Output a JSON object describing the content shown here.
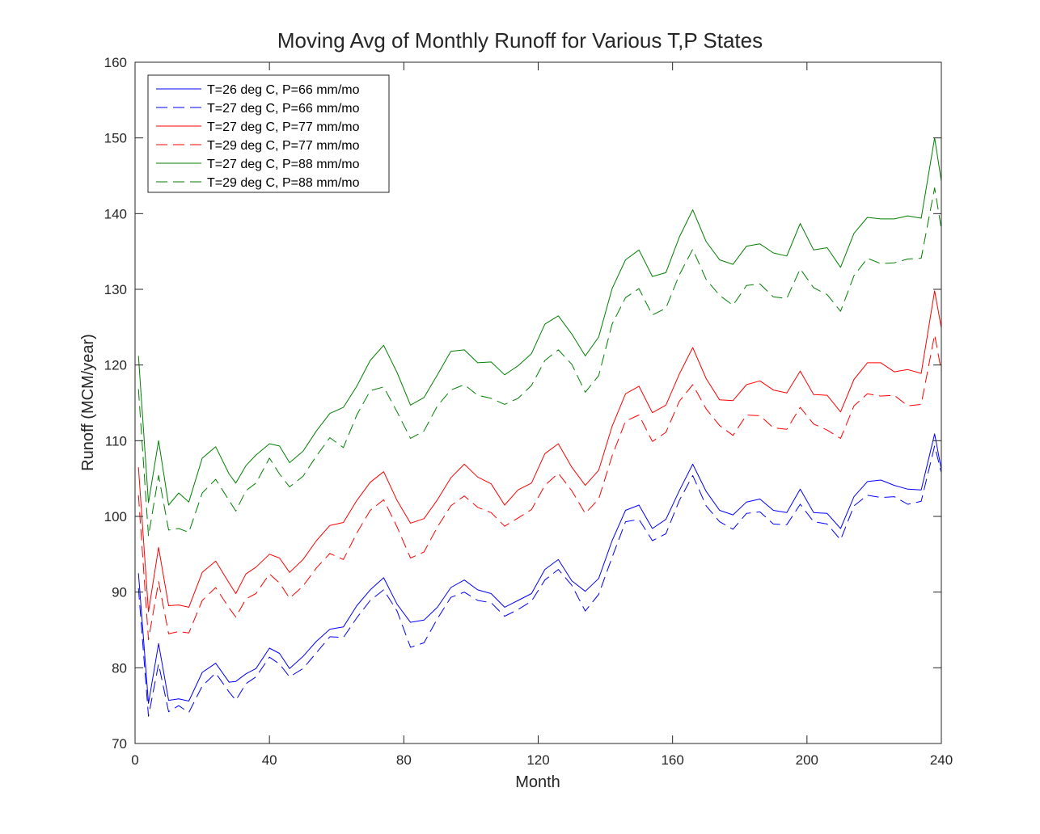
{
  "chart_data": {
    "type": "line",
    "title": "Moving Avg of Monthly Runoff for Various T,P States",
    "xlabel": "Month",
    "ylabel": "Runoff (MCM/year)",
    "xlim": [
      0,
      240
    ],
    "ylim": [
      70,
      160
    ],
    "xticks": [
      0,
      40,
      80,
      120,
      160,
      200,
      240
    ],
    "yticks": [
      70,
      80,
      90,
      100,
      110,
      120,
      130,
      140,
      150,
      160
    ],
    "grid": false,
    "legend_position": "top-left",
    "x": [
      1,
      4,
      7,
      10,
      13,
      16,
      20,
      24,
      28,
      30,
      33,
      36,
      40,
      43,
      46,
      50,
      54,
      58,
      62,
      66,
      70,
      74,
      78,
      82,
      86,
      90,
      94,
      98,
      102,
      106,
      110,
      114,
      118,
      122,
      126,
      130,
      134,
      138,
      142,
      146,
      150,
      154,
      158,
      162,
      166,
      170,
      174,
      178,
      182,
      186,
      190,
      194,
      198,
      202,
      206,
      210,
      214,
      218,
      222,
      226,
      230,
      234,
      238,
      240
    ],
    "series": [
      {
        "name": "T=26 deg C, P=66 mm/mo",
        "color": "#0000ff",
        "style": "solid",
        "values": [
          92.5,
          75.3,
          83.2,
          75.7,
          75.9,
          75.6,
          79.4,
          80.6,
          78.1,
          78.2,
          79.2,
          79.9,
          82.6,
          81.9,
          79.9,
          81.5,
          83.5,
          85.1,
          85.4,
          88.2,
          90.3,
          91.9,
          88.4,
          86.0,
          86.3,
          88.0,
          90.6,
          91.6,
          90.3,
          89.8,
          88.0,
          88.9,
          89.8,
          93.0,
          94.3,
          91.5,
          90.1,
          91.8,
          96.8,
          100.8,
          101.5,
          98.4,
          99.6,
          103.4,
          106.9,
          103.3,
          100.8,
          100.2,
          101.9,
          102.3,
          100.8,
          100.5,
          103.6,
          100.5,
          100.4,
          98.4,
          102.6,
          104.6,
          104.8,
          104.1,
          103.6,
          103.5,
          110.9,
          106.2
        ]
      },
      {
        "name": "T=27 deg C, P=66 mm/mo",
        "color": "#0000ff",
        "style": "dashed",
        "values": [
          90.5,
          73.6,
          80.5,
          74.2,
          75.0,
          74.1,
          77.6,
          79.3,
          76.8,
          75.7,
          77.9,
          78.8,
          81.4,
          80.5,
          78.8,
          79.9,
          82.0,
          84.1,
          84.0,
          86.6,
          88.9,
          90.3,
          87.5,
          82.7,
          83.3,
          86.5,
          89.3,
          90.0,
          88.9,
          88.6,
          86.8,
          87.7,
          88.8,
          91.6,
          93.0,
          90.9,
          87.5,
          89.7,
          94.6,
          99.3,
          99.6,
          96.8,
          97.7,
          102.1,
          105.4,
          101.4,
          99.3,
          98.3,
          100.4,
          100.6,
          99.0,
          98.9,
          101.6,
          99.3,
          99.0,
          96.9,
          101.4,
          102.8,
          102.5,
          102.6,
          101.6,
          102.0,
          109.3,
          105.8
        ]
      },
      {
        "name": "T=27 deg C, P=77 mm/mo",
        "color": "#ff0000",
        "style": "solid",
        "values": [
          106.5,
          87.4,
          95.9,
          88.2,
          88.3,
          88.0,
          92.6,
          94.1,
          91.2,
          89.8,
          92.4,
          93.3,
          95.0,
          94.5,
          92.6,
          94.3,
          96.8,
          98.8,
          99.2,
          102.1,
          104.5,
          105.9,
          102.1,
          99.1,
          99.7,
          102.2,
          105.1,
          106.9,
          105.2,
          104.3,
          101.5,
          103.5,
          104.4,
          108.3,
          109.6,
          106.5,
          104.1,
          106.1,
          111.9,
          116.2,
          117.2,
          113.7,
          114.7,
          118.8,
          122.3,
          118.2,
          115.4,
          115.3,
          117.4,
          117.9,
          116.7,
          116.3,
          119.2,
          116.1,
          116.0,
          113.8,
          118.1,
          120.3,
          120.3,
          119.1,
          119.4,
          118.9,
          129.8,
          124.9
        ]
      },
      {
        "name": "T=29 deg C, P=77 mm/mo",
        "color": "#ff0000",
        "style": "dashed",
        "values": [
          102.8,
          83.7,
          91.4,
          84.5,
          84.8,
          84.6,
          88.9,
          90.6,
          87.9,
          86.7,
          89.1,
          89.8,
          92.4,
          91.2,
          89.2,
          90.8,
          93.2,
          95.1,
          94.3,
          97.8,
          100.8,
          102.2,
          98.6,
          94.5,
          95.3,
          98.6,
          101.4,
          102.7,
          101.2,
          100.5,
          98.7,
          99.8,
          100.9,
          104.1,
          105.7,
          103.4,
          100.4,
          102.3,
          108.0,
          112.6,
          113.4,
          109.9,
          111.1,
          115.2,
          117.4,
          114.2,
          112.0,
          110.7,
          113.4,
          113.3,
          111.7,
          111.5,
          114.4,
          112.2,
          111.4,
          110.3,
          114.6,
          116.2,
          115.9,
          116.0,
          114.6,
          114.8,
          124.0,
          119.2
        ]
      },
      {
        "name": "T=27 deg C, P=88 mm/mo",
        "color": "#007f00",
        "style": "solid",
        "values": [
          121.2,
          101.8,
          110.0,
          101.5,
          103.1,
          101.9,
          107.7,
          109.2,
          105.6,
          104.4,
          106.7,
          108.1,
          109.6,
          109.3,
          107.1,
          108.6,
          111.3,
          113.6,
          114.4,
          117.2,
          120.6,
          122.6,
          119.0,
          114.7,
          115.7,
          118.7,
          121.8,
          122.0,
          120.3,
          120.4,
          118.7,
          119.9,
          121.5,
          125.4,
          126.5,
          124.1,
          121.2,
          123.7,
          130.1,
          133.9,
          135.2,
          131.7,
          132.2,
          136.9,
          140.5,
          136.3,
          133.9,
          133.3,
          135.7,
          136.0,
          134.8,
          134.4,
          138.7,
          135.2,
          135.5,
          132.9,
          137.4,
          139.5,
          139.3,
          139.3,
          139.7,
          139.4,
          150.0,
          144.3
        ]
      },
      {
        "name": "T=29 deg C, P=88 mm/mo",
        "color": "#007f00",
        "style": "dashed",
        "values": [
          116.8,
          97.4,
          105.4,
          98.2,
          98.4,
          97.9,
          103.1,
          104.9,
          102.1,
          100.7,
          103.4,
          104.4,
          107.7,
          105.6,
          103.9,
          105.3,
          108.0,
          110.4,
          109.1,
          113.4,
          116.6,
          117.1,
          113.8,
          110.3,
          111.3,
          114.6,
          116.7,
          117.4,
          116.0,
          115.6,
          114.8,
          115.6,
          117.3,
          120.6,
          122.0,
          120.1,
          116.4,
          118.6,
          125.4,
          128.9,
          130.1,
          126.6,
          127.5,
          131.9,
          135.3,
          131.3,
          129.2,
          127.9,
          130.5,
          130.7,
          129.0,
          128.8,
          132.7,
          130.2,
          129.3,
          127.1,
          131.8,
          134.1,
          133.4,
          133.5,
          134.0,
          134.1,
          143.4,
          138.0
        ]
      }
    ]
  }
}
